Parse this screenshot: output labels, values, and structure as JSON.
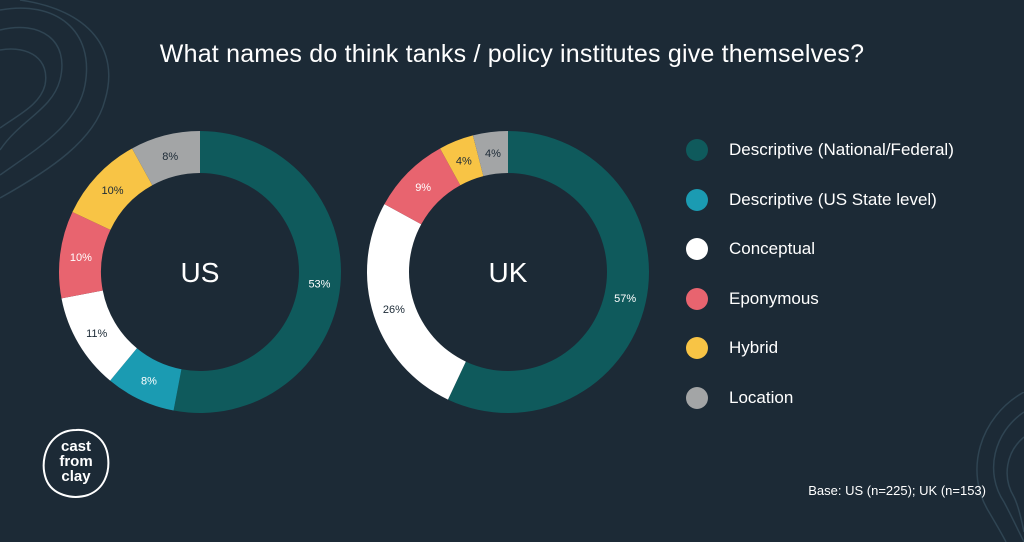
{
  "title": "What names do think tanks / policy institutes give themselves?",
  "base_note": "Base: US (n=225); UK (n=153)",
  "logo": {
    "line1": "cast",
    "line2": "from",
    "line3": "clay"
  },
  "colors": {
    "background": "#1c2a36",
    "Descriptive (National/Federal)": "#0f5a5c",
    "Descriptive (US State level)": "#1b9bb2",
    "Conceptual": "#ffffff",
    "Eponymous": "#e8646f",
    "Hybrid": "#f8c445",
    "Location": "#a3a5a6"
  },
  "legend": [
    {
      "label": "Descriptive (National/Federal)",
      "color": "#0f5a5c"
    },
    {
      "label": "Descriptive (US State level)",
      "color": "#1b9bb2"
    },
    {
      "label": "Conceptual",
      "color": "#ffffff"
    },
    {
      "label": "Eponymous",
      "color": "#e8646f"
    },
    {
      "label": "Hybrid",
      "color": "#f8c445"
    },
    {
      "label": "Location",
      "color": "#a3a5a6"
    }
  ],
  "chart_data": [
    {
      "type": "pie",
      "center_label": "US",
      "slices": [
        {
          "category": "Descriptive (National/Federal)",
          "value": 53,
          "label": "53%",
          "color": "#0f5a5c"
        },
        {
          "category": "Descriptive (US State level)",
          "value": 8,
          "label": "8%",
          "color": "#1b9bb2"
        },
        {
          "category": "Conceptual",
          "value": 11,
          "label": "11%",
          "color": "#ffffff"
        },
        {
          "category": "Eponymous",
          "value": 10,
          "label": "10%",
          "color": "#e8646f"
        },
        {
          "category": "Hybrid",
          "value": 10,
          "label": "10%",
          "color": "#f8c445"
        },
        {
          "category": "Location",
          "value": 8,
          "label": "8%",
          "color": "#a3a5a6"
        }
      ]
    },
    {
      "type": "pie",
      "center_label": "UK",
      "slices": [
        {
          "category": "Descriptive (National/Federal)",
          "value": 57,
          "label": "57%",
          "color": "#0f5a5c"
        },
        {
          "category": "Conceptual",
          "value": 26,
          "label": "26%",
          "color": "#ffffff"
        },
        {
          "category": "Eponymous",
          "value": 9,
          "label": "9%",
          "color": "#e8646f"
        },
        {
          "category": "Hybrid",
          "value": 4,
          "label": "4%",
          "color": "#f8c445"
        },
        {
          "category": "Location",
          "value": 4,
          "label": "4%",
          "color": "#a3a5a6"
        }
      ]
    }
  ]
}
